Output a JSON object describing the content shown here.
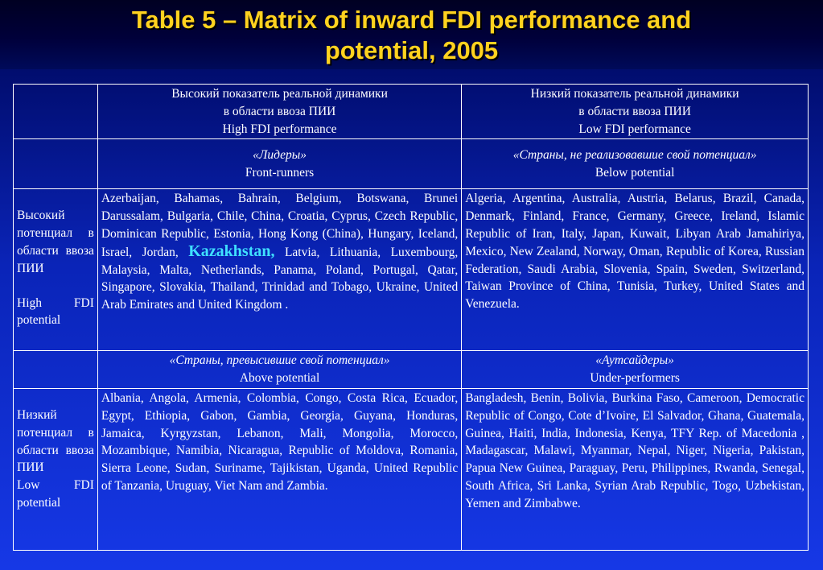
{
  "title": {
    "line1": "Table 5 – Matrix of inward FDI performance and",
    "line2": "potential, 2005"
  },
  "header": {
    "high_perf": {
      "ru1": "Высокий показатель реальной динамики",
      "ru2": "в области ввоза ПИИ",
      "en": "High FDI performance"
    },
    "low_perf": {
      "ru1": "Низкий показатель реальной динамики",
      "ru2": "в области ввоза ПИИ",
      "en": "Low FDI performance"
    }
  },
  "categories": {
    "front_runners": {
      "ru": "«Лидеры»",
      "en": "Front-runners"
    },
    "below_potential": {
      "ru": "«Страны, не реализовавшие свой потенциал»",
      "en": "Below potential"
    },
    "above_potential": {
      "ru": "«Страны, превысившие свой потенциал»",
      "en": "Above potential"
    },
    "under_performers": {
      "ru": "«Аутсайдеры»",
      "en": "Under-performers"
    }
  },
  "rows": {
    "high_potential": {
      "ru1": "Высокий потенциал в области ввоза ПИИ",
      "en": "High FDI potential"
    },
    "low_potential": {
      "ru1": "Низкий потенциал в области ввоза ПИИ",
      "en": "Low FDI potential"
    }
  },
  "cells": {
    "front_runners_pre": "Azerbaijan, Bahamas, Bahrain, Belgium, Botswana, Brunei Darussalam, Bulgaria, Chile, China, Croatia, Cyprus, Czech Republic, Dominican Republic, Estonia, Hong Kong (China), Hungary, Iceland, Israel, Jordan,",
    "front_runners_highlight": "Kazakhstan,",
    "front_runners_post": "Latvia, Lithuania, Luxembourg, Malaysia, Malta, Netherlands, Panama, Poland, Portugal, Qatar, Singapore, Slovakia, Thailand, Trinidad and Tobago, Ukraine, United Arab Emirates and United Kingdom .",
    "below_potential": "Algeria, Argentina, Australia, Austria, Belarus, Brazil, Canada, Denmark, Finland, France, Germany, Greece, Ireland, Islamic Republic of Iran, Italy, Japan, Kuwait, Libyan Arab Jamahiriya, Mexico, New Zealand, Norway, Oman, Republic of Korea, Russian Federation, Saudi Arabia, Slovenia, Spain, Sweden, Switzerland, Taiwan Province of China, Tunisia, Turkey, United States and Venezuela.",
    "above_potential": "Albania, Angola, Armenia, Colombia, Congo, Costa Rica, Ecuador, Egypt, Ethiopia, Gabon, Gambia, Georgia, Guyana, Honduras, Jamaica, Kyrgyzstan, Lebanon, Mali, Mongolia, Morocco, Mozambique, Namibia, Nicaragua, Republic of Moldova, Romania, Sierra Leone, Sudan, Suriname, Tajikistan, Uganda, United Republic of Tanzania, Uruguay, Viet Nam and Zambia.",
    "under_performers": "Bangladesh, Benin, Bolivia, Burkina Faso, Cameroon, Democratic Republic of Congo, Cote d’Ivoire, El Salvador, Ghana, Guatemala, Guinea, Haiti, India, Indonesia, Kenya, TFY Rep. of Macedonia , Madagascar, Malawi, Myanmar, Nepal, Niger, Nigeria, Pakistan, Papua New Guinea, Paraguay, Peru, Philippines, Rwanda, Senegal, South Africa, Sri Lanka, Syrian Arab Republic, Togo, Uzbekistan, Yemen and Zimbabwe."
  }
}
